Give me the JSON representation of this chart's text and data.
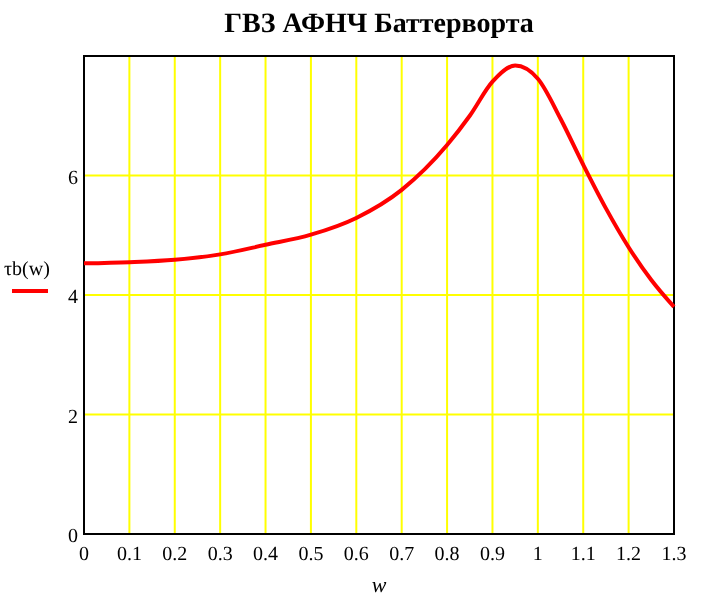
{
  "chart_data": {
    "type": "line",
    "title": "ГВЗ АФНЧ Баттерворта",
    "xlabel": "w",
    "ylabel": "τb(w)",
    "x": [
      0,
      0.1,
      0.2,
      0.3,
      0.4,
      0.5,
      0.6,
      0.7,
      0.8,
      0.85,
      0.9,
      0.95,
      1.0,
      1.05,
      1.1,
      1.15,
      1.2,
      1.25,
      1.3
    ],
    "series": [
      {
        "color": "#ff0000",
        "values": [
          4.53,
          4.55,
          4.59,
          4.68,
          4.84,
          5.01,
          5.29,
          5.76,
          6.51,
          7.0,
          7.57,
          7.84,
          7.62,
          6.95,
          6.18,
          5.45,
          4.8,
          4.25,
          3.8
        ]
      }
    ],
    "xlim": [
      0,
      1.3
    ],
    "xticks": [
      0,
      0.1,
      0.2,
      0.3,
      0.4,
      0.5,
      0.6,
      0.7,
      0.8,
      0.9,
      1,
      1.1,
      1.2,
      1.3
    ],
    "ylim": [
      0,
      8
    ],
    "yticks": [
      0,
      2,
      4,
      6
    ],
    "grid": true
  }
}
